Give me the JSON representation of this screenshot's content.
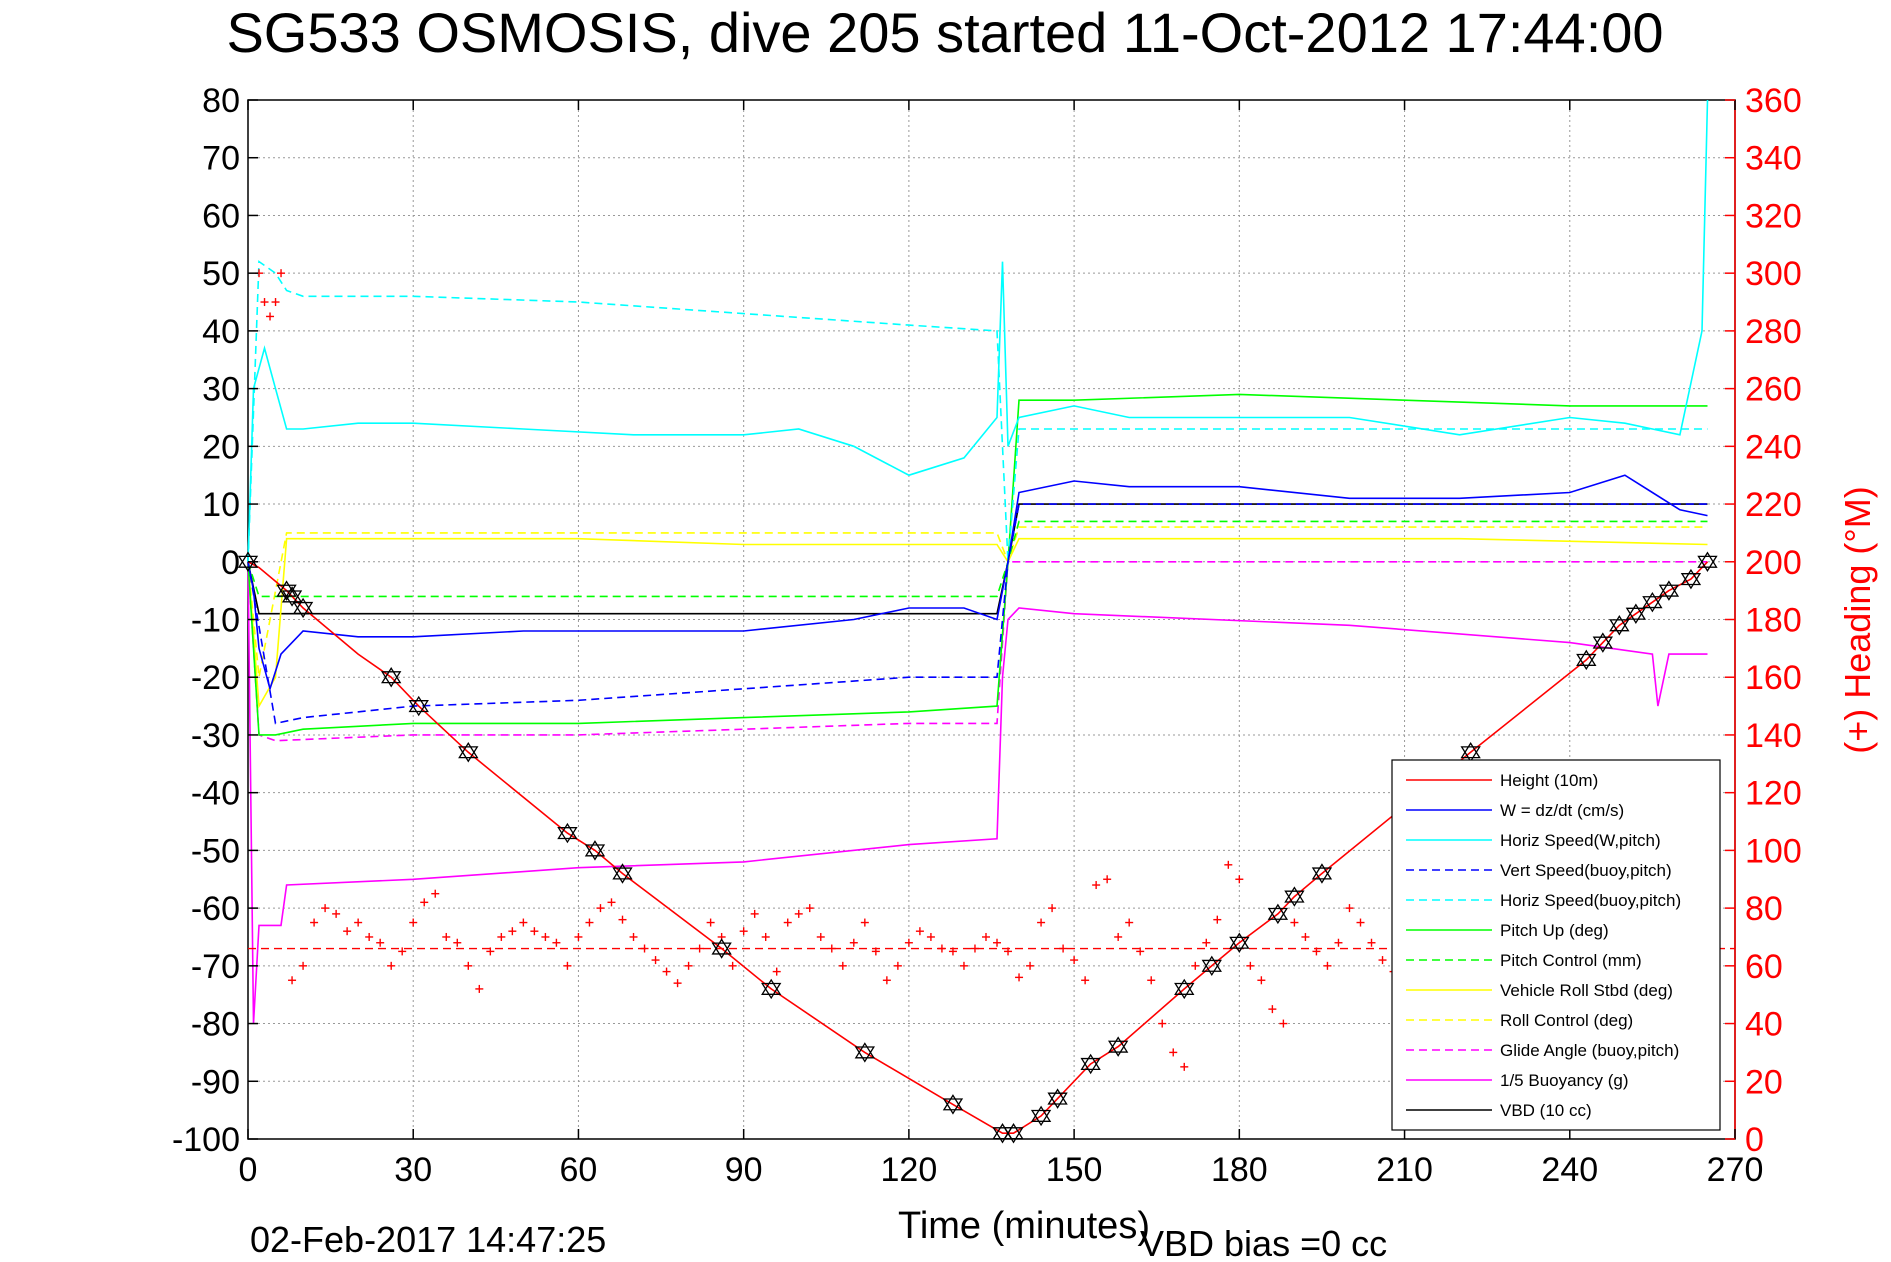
{
  "chart_data": {
    "type": "line",
    "title": "SG533 OSMOSIS, dive 205 started 11-Oct-2012 17:44:00",
    "xlabel": "Time (minutes)",
    "ylabel_right": "(+) Heading (°M)",
    "xlim": [
      0,
      270
    ],
    "ylim_left": [
      -100,
      80
    ],
    "ylim_right": [
      0,
      360
    ],
    "x_ticks": [
      "0",
      "30",
      "60",
      "90",
      "120",
      "150",
      "180",
      "210",
      "240",
      "270"
    ],
    "y_left_ticks": [
      "80",
      "70",
      "60",
      "50",
      "40",
      "30",
      "20",
      "10",
      "0",
      "-10",
      "-20",
      "-30",
      "-40",
      "-50",
      "-60",
      "-70",
      "-80",
      "-90",
      "-100"
    ],
    "y_right_ticks": [
      "360",
      "340",
      "320",
      "300",
      "280",
      "260",
      "240",
      "220",
      "200",
      "180",
      "160",
      "140",
      "120",
      "100",
      "80",
      "60",
      "40",
      "20",
      "0"
    ],
    "grid": true,
    "legend_position": "bottom-right",
    "footer_left": "02-Feb-2017 14:47:25",
    "footer_right": "VBD bias =0 cc",
    "series": [
      {
        "name": "Height (10m)",
        "color": "#ff0000",
        "style": "solid",
        "x": [
          0,
          2,
          7,
          10,
          20,
          26,
          31,
          40,
          58,
          63,
          68,
          86,
          95,
          112,
          128,
          137,
          139,
          144,
          147,
          153,
          158,
          170,
          175,
          180,
          187,
          190,
          195,
          222,
          243,
          246,
          249,
          252,
          255,
          258,
          262,
          265
        ],
        "y": [
          0,
          -1,
          -5,
          -8,
          -16,
          -20,
          -25,
          -33,
          -47,
          -50,
          -54,
          -67,
          -74,
          -85,
          -94,
          -99,
          -99,
          -96,
          -93,
          -87,
          -84,
          -74,
          -70,
          -66,
          -61,
          -58,
          -54,
          -33,
          -17,
          -14,
          -11,
          -9,
          -7,
          -5,
          -3,
          0
        ]
      },
      {
        "name": "W = dz/dt (cm/s)",
        "color": "#0000ff",
        "style": "solid",
        "x": [
          0,
          1,
          2,
          4,
          6,
          10,
          20,
          30,
          50,
          70,
          90,
          110,
          120,
          130,
          136,
          138,
          140,
          150,
          160,
          180,
          200,
          220,
          240,
          250,
          260,
          265
        ],
        "y": [
          0,
          -5,
          -15,
          -22,
          -16,
          -12,
          -13,
          -13,
          -12,
          -12,
          -12,
          -10,
          -8,
          -8,
          -10,
          0,
          12,
          14,
          13,
          13,
          11,
          11,
          12,
          15,
          9,
          8
        ]
      },
      {
        "name": "Horiz Speed(W,pitch)",
        "color": "#00ffff",
        "style": "solid",
        "x": [
          0,
          1,
          3,
          5,
          7,
          10,
          20,
          30,
          50,
          70,
          90,
          100,
          110,
          120,
          130,
          136,
          137,
          138,
          140,
          150,
          160,
          180,
          200,
          220,
          240,
          250,
          260,
          264,
          265
        ],
        "y": [
          0,
          30,
          37,
          30,
          23,
          23,
          24,
          24,
          23,
          22,
          22,
          23,
          20,
          15,
          18,
          25,
          52,
          20,
          25,
          27,
          25,
          25,
          25,
          22,
          25,
          24,
          22,
          40,
          80
        ]
      },
      {
        "name": "Vert Speed(buoy,pitch)",
        "color": "#0000ff",
        "style": "dashed",
        "x": [
          0,
          5,
          10,
          30,
          60,
          90,
          120,
          136,
          138,
          140,
          265
        ],
        "y": [
          0,
          -28,
          -27,
          -25,
          -24,
          -22,
          -20,
          -20,
          0,
          10,
          10
        ]
      },
      {
        "name": "Horiz Speed(buoy,pitch)",
        "color": "#00ffff",
        "style": "dashed",
        "x": [
          0,
          2,
          5,
          7,
          10,
          30,
          60,
          90,
          120,
          136,
          138,
          140,
          265
        ],
        "y": [
          0,
          52,
          50,
          47,
          46,
          46,
          45,
          43,
          41,
          40,
          0,
          23,
          23
        ]
      },
      {
        "name": "Pitch Up (deg)",
        "color": "#00ff00",
        "style": "solid",
        "x": [
          0,
          2,
          5,
          10,
          30,
          60,
          90,
          120,
          136,
          138,
          140,
          150,
          180,
          210,
          240,
          260,
          265
        ],
        "y": [
          0,
          -30,
          -30,
          -29,
          -28,
          -28,
          -27,
          -26,
          -25,
          0,
          28,
          28,
          29,
          28,
          27,
          27,
          27
        ]
      },
      {
        "name": "Pitch Control (mm)",
        "color": "#00ff00",
        "style": "dashed",
        "x": [
          0,
          2,
          136,
          138,
          140,
          265
        ],
        "y": [
          0,
          -6,
          -6,
          0,
          7,
          7
        ]
      },
      {
        "name": "Vehicle Roll Stbd (deg)",
        "color": "#ffff00",
        "style": "solid",
        "x": [
          0,
          2,
          5,
          7,
          30,
          60,
          90,
          120,
          136,
          138,
          140,
          180,
          220,
          265
        ],
        "y": [
          0,
          -25,
          -20,
          4,
          4,
          4,
          3,
          3,
          3,
          0,
          4,
          4,
          4,
          3
        ]
      },
      {
        "name": "Roll Control (deg)",
        "color": "#ffff00",
        "style": "dashed",
        "x": [
          0,
          2,
          7,
          136,
          138,
          140,
          265
        ],
        "y": [
          0,
          -20,
          5,
          5,
          0,
          6,
          6
        ]
      },
      {
        "name": "Glide Angle (buoy,pitch)",
        "color": "#ff00ff",
        "style": "dashed",
        "x": [
          0,
          2,
          5,
          30,
          60,
          90,
          120,
          136,
          138,
          140,
          265
        ],
        "y": [
          0,
          -30,
          -31,
          -30,
          -30,
          -29,
          -28,
          -28,
          0,
          0,
          0
        ]
      },
      {
        "name": "1/5 Buoyancy (g)",
        "color": "#ff00ff",
        "style": "solid",
        "x": [
          0,
          1,
          2,
          6,
          7,
          30,
          60,
          90,
          120,
          136,
          137,
          138,
          140,
          150,
          200,
          240,
          255,
          256,
          258,
          265
        ],
        "y": [
          0,
          -80,
          -63,
          -63,
          -56,
          -55,
          -53,
          -52,
          -49,
          -48,
          -20,
          -10,
          -8,
          -9,
          -11,
          -14,
          -16,
          -25,
          -16,
          -16
        ]
      },
      {
        "name": "VBD (10 cc)",
        "color": "#000000",
        "style": "solid",
        "x": [
          0,
          2,
          136,
          138,
          140,
          265
        ],
        "y": [
          0,
          -9,
          -9,
          0,
          10,
          10
        ]
      }
    ],
    "heading": {
      "name": "Heading (°M)",
      "color": "#ff0000",
      "mean": 66,
      "x": [
        2,
        3,
        4,
        5,
        6,
        8,
        10,
        12,
        14,
        16,
        18,
        20,
        22,
        24,
        26,
        28,
        30,
        32,
        34,
        36,
        38,
        40,
        42,
        44,
        46,
        48,
        50,
        52,
        54,
        56,
        58,
        60,
        62,
        64,
        66,
        68,
        70,
        72,
        74,
        76,
        78,
        80,
        82,
        84,
        86,
        88,
        90,
        92,
        94,
        96,
        98,
        100,
        102,
        104,
        106,
        108,
        110,
        112,
        114,
        116,
        118,
        120,
        122,
        124,
        126,
        128,
        130,
        132,
        134,
        136,
        138,
        140,
        142,
        144,
        146,
        148,
        150,
        152,
        154,
        156,
        158,
        160,
        162,
        164,
        166,
        168,
        170,
        172,
        174,
        176,
        178,
        180,
        182,
        184,
        186,
        188,
        190,
        192,
        194,
        196,
        198,
        200,
        202,
        204,
        206,
        208,
        210
      ],
      "y": [
        300,
        290,
        285,
        290,
        300,
        55,
        60,
        75,
        80,
        78,
        72,
        75,
        70,
        68,
        60,
        65,
        75,
        82,
        85,
        70,
        68,
        60,
        52,
        65,
        70,
        72,
        75,
        72,
        70,
        68,
        60,
        70,
        75,
        80,
        82,
        76,
        70,
        66,
        62,
        58,
        54,
        60,
        66,
        75,
        70,
        60,
        72,
        78,
        70,
        58,
        75,
        78,
        80,
        70,
        66,
        60,
        68,
        75,
        65,
        55,
        60,
        68,
        72,
        70,
        66,
        65,
        60,
        66,
        70,
        68,
        65,
        56,
        60,
        75,
        80,
        66,
        62,
        55,
        88,
        90,
        70,
        75,
        65,
        55,
        40,
        30,
        25,
        60,
        68,
        76,
        95,
        90,
        60,
        55,
        45,
        40,
        75,
        70,
        65,
        60,
        68,
        80,
        75,
        68,
        62,
        58,
        60
      ]
    },
    "markers_height": {
      "symbol": "triangle-star",
      "x": [
        0,
        7,
        8,
        10,
        26,
        31,
        40,
        58,
        63,
        68,
        86,
        95,
        112,
        128,
        137,
        139,
        144,
        147,
        153,
        158,
        170,
        175,
        180,
        187,
        190,
        195,
        222,
        243,
        246,
        249,
        252,
        255,
        258,
        262,
        265
      ],
      "y": [
        0,
        -5,
        -6,
        -8,
        -20,
        -25,
        -33,
        -47,
        -50,
        -54,
        -67,
        -74,
        -85,
        -94,
        -99,
        -99,
        -96,
        -93,
        -87,
        -84,
        -74,
        -70,
        -66,
        -61,
        -58,
        -54,
        -33,
        -17,
        -14,
        -11,
        -9,
        -7,
        -5,
        -3,
        0
      ]
    }
  }
}
